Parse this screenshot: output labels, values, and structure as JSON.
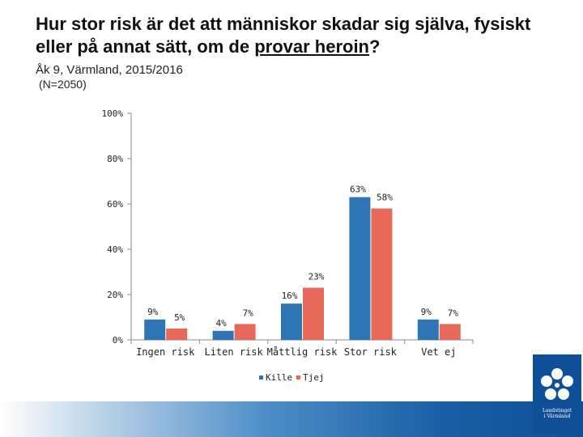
{
  "title": {
    "part1": "Hur stor risk är det att människor skadar sig själva, fysiskt eller på annat sätt, om de ",
    "underlined": "provar heroin",
    "part2": "?"
  },
  "subtitle": "Åk 9, Värmland, 2015/2016",
  "n_label": "(N=2050)",
  "logo": {
    "line1": "Landstinget",
    "line2": "i Värmland"
  },
  "colors": {
    "kille": "#2E75B6",
    "tjej": "#E7695A",
    "footer": "#0f4f97"
  },
  "chart_data": {
    "type": "bar",
    "categories": [
      "Ingen risk",
      "Liten risk",
      "Måttlig risk",
      "Stor risk",
      "Vet ej"
    ],
    "series": [
      {
        "name": "Kille",
        "values": [
          9,
          4,
          16,
          63,
          9
        ],
        "labels": [
          "9%",
          "4%",
          "16%",
          "63%",
          "9%"
        ]
      },
      {
        "name": "Tjej",
        "values": [
          5,
          7,
          23,
          58,
          7
        ],
        "labels": [
          "5%",
          "7%",
          "23%",
          "58%",
          "7%"
        ]
      }
    ],
    "ylim": [
      0,
      100
    ],
    "yticks": [
      "0%",
      "20%",
      "40%",
      "60%",
      "80%",
      "100%"
    ],
    "legend_position": "bottom",
    "grid": false
  }
}
